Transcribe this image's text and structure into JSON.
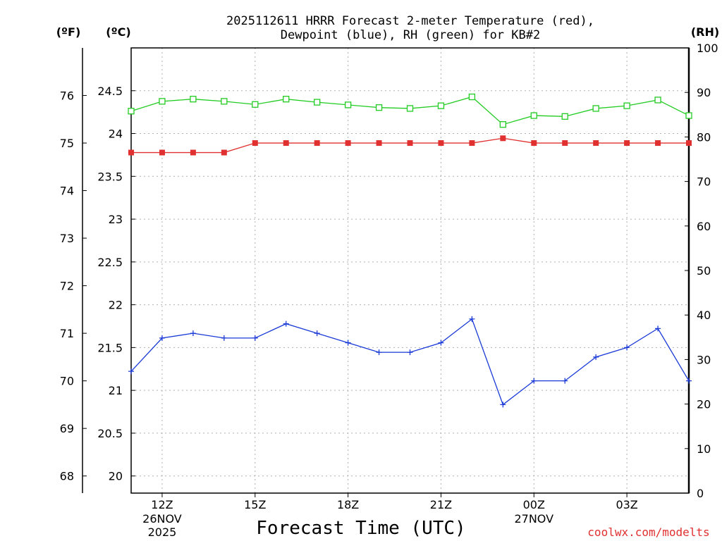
{
  "chart_data": {
    "type": "line",
    "title_line1": "2025112611 HRRR Forecast 2-meter Temperature (red),",
    "title_line2": "Dewpoint (blue), RH (green) for KB#2",
    "xlabel": "Forecast Time (UTC)",
    "unit_f": "(ºF)",
    "unit_c": "(ºC)",
    "unit_rh": "(RH)",
    "credit": "coolwx.com/modelts",
    "x_hours": [
      11,
      12,
      13,
      14,
      15,
      16,
      17,
      18,
      19,
      20,
      21,
      22,
      23,
      24,
      25,
      26,
      27,
      28,
      29
    ],
    "x_ticks": [
      {
        "hour": 12,
        "label": "12Z",
        "sub1": "26NOV",
        "sub2": "2025"
      },
      {
        "hour": 15,
        "label": "15Z",
        "sub1": "",
        "sub2": ""
      },
      {
        "hour": 18,
        "label": "18Z",
        "sub1": "",
        "sub2": ""
      },
      {
        "hour": 21,
        "label": "21Z",
        "sub1": "",
        "sub2": ""
      },
      {
        "hour": 24,
        "label": "00Z",
        "sub1": "27NOV",
        "sub2": ""
      },
      {
        "hour": 27,
        "label": "03Z",
        "sub1": "",
        "sub2": ""
      }
    ],
    "xlim": [
      11,
      29
    ],
    "ylim_c": [
      19.8,
      25.0
    ],
    "ylim_f": [
      67.64,
      77.0
    ],
    "ylim_rh": [
      0,
      100
    ],
    "ticks_c": [
      "20",
      "20.5",
      "21",
      "21.5",
      "22",
      "22.5",
      "23",
      "23.5",
      "24",
      "24.5"
    ],
    "ticks_f": [
      "68",
      "69",
      "70",
      "71",
      "72",
      "73",
      "74",
      "75",
      "76"
    ],
    "ticks_rh": [
      "0",
      "10",
      "20",
      "30",
      "40",
      "50",
      "60",
      "70",
      "80",
      "90",
      "100"
    ],
    "series": [
      {
        "name": "Temperature",
        "color": "#e03030",
        "marker": "filled-square",
        "axis": "F",
        "values": [
          74.8,
          74.8,
          74.8,
          74.8,
          75.0,
          75.0,
          75.0,
          75.0,
          75.0,
          75.0,
          75.0,
          75.0,
          75.1,
          75.0,
          75.0,
          75.0,
          75.0,
          75.0,
          75.0
        ]
      },
      {
        "name": "Dewpoint",
        "color": "#1a3ad8",
        "marker": "plus",
        "axis": "F",
        "values": [
          70.2,
          70.9,
          71.0,
          70.9,
          70.9,
          71.2,
          71.0,
          70.8,
          70.6,
          70.6,
          70.8,
          71.3,
          69.5,
          70.0,
          70.0,
          70.5,
          70.7,
          71.1,
          70.0
        ]
      },
      {
        "name": "RH",
        "color": "#22cc22",
        "marker": "open-square",
        "axis": "RH",
        "values": [
          85.8,
          88.0,
          88.5,
          88.0,
          87.3,
          88.5,
          87.8,
          87.2,
          86.6,
          86.4,
          87.0,
          89.0,
          82.8,
          84.8,
          84.6,
          86.4,
          87.0,
          88.3,
          84.8
        ]
      }
    ]
  }
}
